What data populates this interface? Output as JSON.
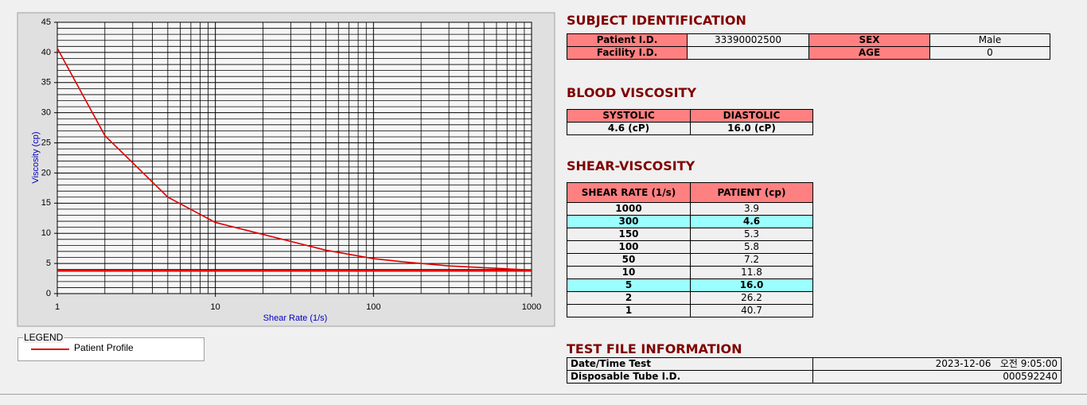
{
  "chart_data": {
    "type": "line",
    "x_label": "Shear Rate (1/s)",
    "y_label": "Viscosity (cp)",
    "x": [
      1,
      2,
      5,
      10,
      50,
      100,
      150,
      300,
      1000
    ],
    "series": [
      {
        "name": "Patient Profile",
        "color": "#e00000",
        "values": [
          40.7,
          26.2,
          16.0,
          11.8,
          7.2,
          5.8,
          5.3,
          4.6,
          3.9
        ]
      }
    ],
    "reference_lines": [
      {
        "value": 3.8,
        "color": "#e00000"
      }
    ],
    "xscale": "log",
    "xlim": [
      1,
      1000
    ],
    "xticks": [
      1,
      10,
      100,
      1000
    ],
    "x_minor_ticks": [
      2,
      3,
      4,
      5,
      6,
      7,
      8,
      9,
      20,
      30,
      40,
      50,
      60,
      70,
      80,
      90,
      200,
      300,
      400,
      500,
      600,
      700,
      800,
      900
    ],
    "ylim": [
      0,
      45
    ],
    "yticks": [
      0,
      5,
      10,
      15,
      20,
      25,
      30,
      35,
      40,
      45
    ],
    "y_minor_ticks": [
      1,
      2,
      3,
      4,
      6,
      7,
      8,
      9,
      11,
      12,
      13,
      14,
      16,
      17,
      18,
      19,
      21,
      22,
      23,
      24,
      26,
      27,
      28,
      29,
      31,
      32,
      33,
      34,
      36,
      37,
      38,
      39,
      41,
      42,
      43,
      44
    ],
    "grid": true,
    "legend_title": "LEGEND"
  },
  "subject_identification": {
    "title": "SUBJECT IDENTIFICATION",
    "patient_id_label": "Patient I.D.",
    "patient_id": "33390002500",
    "sex_label": "SEX",
    "sex": "Male",
    "facility_id_label": "Facility I.D.",
    "age_label": "AGE",
    "age": "0"
  },
  "blood_viscosity": {
    "title": "BLOOD VISCOSITY",
    "headers": [
      "SYSTOLIC",
      "DIASTOLIC"
    ],
    "values": [
      "4.6 (cP)",
      "16.0 (cP)"
    ]
  },
  "shear_viscosity": {
    "title": "SHEAR-VISCOSITY",
    "headers": [
      "SHEAR RATE (1/s)",
      "PATIENT (cp)"
    ],
    "rows": [
      {
        "shear_rate": "1000",
        "patient": "3.9",
        "highlighted": false
      },
      {
        "shear_rate": "300",
        "patient": "4.6",
        "highlighted": true
      },
      {
        "shear_rate": "150",
        "patient": "5.3",
        "highlighted": false
      },
      {
        "shear_rate": "100",
        "patient": "5.8",
        "highlighted": false
      },
      {
        "shear_rate": "50",
        "patient": "7.2",
        "highlighted": false
      },
      {
        "shear_rate": "10",
        "patient": "11.8",
        "highlighted": false
      },
      {
        "shear_rate": "5",
        "patient": "16.0",
        "highlighted": true
      },
      {
        "shear_rate": "2",
        "patient": "26.2",
        "highlighted": false
      },
      {
        "shear_rate": "1",
        "patient": "40.7",
        "highlighted": false
      }
    ]
  },
  "test_file_information": {
    "title": "TEST FILE INFORMATION",
    "rows": [
      [
        "Date/Time Test",
        "2023-12-06   오전 9:05:00"
      ],
      [
        "Disposable Tube I.D.",
        "000592240"
      ]
    ]
  }
}
